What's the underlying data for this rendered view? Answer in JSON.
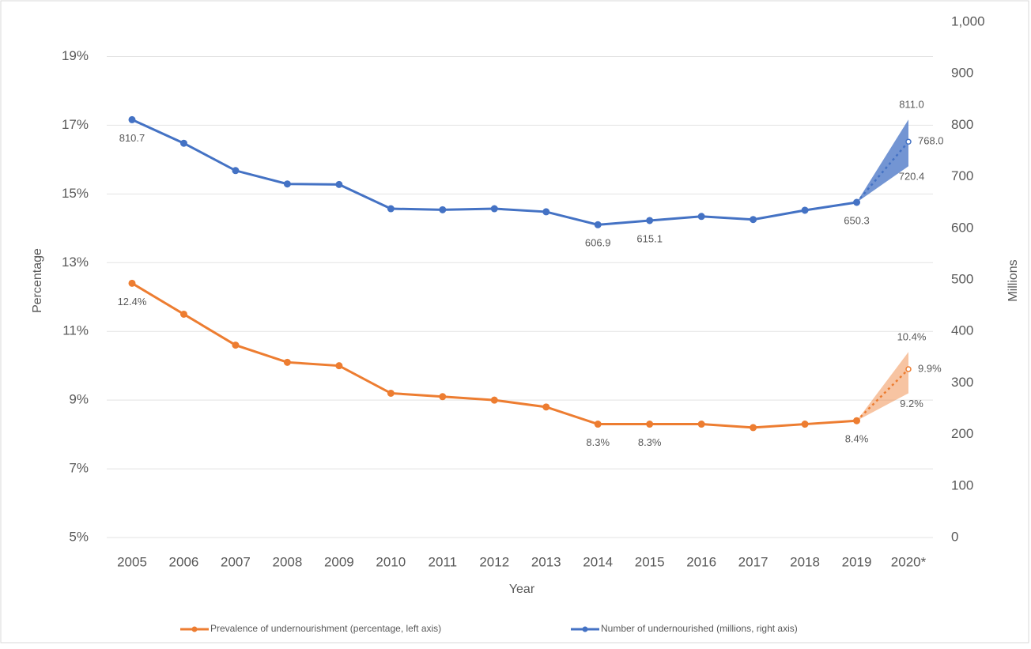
{
  "chart_data": {
    "type": "line",
    "x_label": "Year",
    "y_label": "Percentage",
    "y2_label": "Millions",
    "categories": [
      "2005",
      "2006",
      "2007",
      "2008",
      "2009",
      "2010",
      "2011",
      "2012",
      "2013",
      "2014",
      "2015",
      "2016",
      "2017",
      "2018",
      "2019",
      "2020*"
    ],
    "ylim": [
      5,
      20
    ],
    "yticks": [
      {
        "value": 5,
        "label": "5%"
      },
      {
        "value": 7,
        "label": "7%"
      },
      {
        "value": 9,
        "label": "9%"
      },
      {
        "value": 11,
        "label": "11%"
      },
      {
        "value": 13,
        "label": "13%"
      },
      {
        "value": 15,
        "label": "15%"
      },
      {
        "value": 17,
        "label": "17%"
      },
      {
        "value": 19,
        "label": "19%"
      }
    ],
    "y2lim": [
      0,
      1000
    ],
    "y2ticks": [
      0,
      100,
      200,
      300,
      400,
      500,
      600,
      700,
      800,
      900,
      {
        "value": 1000,
        "label": "1,000"
      }
    ],
    "grid": true,
    "legend": "bottom",
    "projection_dashed": true,
    "series": [
      {
        "name": "Prevalence of undernourishment (percentage, left axis)",
        "color": "#ed7d31",
        "axis": "y",
        "values": [
          12.4,
          11.5,
          10.6,
          10.1,
          10.0,
          9.2,
          9.1,
          9.0,
          8.8,
          8.3,
          8.3,
          8.3,
          8.2,
          8.3,
          8.4,
          9.9
        ],
        "value_labels": [
          "12.4%",
          null,
          null,
          null,
          null,
          null,
          null,
          null,
          null,
          "8.3%",
          "8.3%",
          null,
          null,
          null,
          "8.4%",
          "9.9%"
        ],
        "lower": [
          null,
          null,
          null,
          null,
          null,
          null,
          null,
          null,
          null,
          null,
          null,
          null,
          null,
          null,
          null,
          9.2
        ],
        "lower_labels": [
          null,
          null,
          null,
          null,
          null,
          null,
          null,
          null,
          null,
          null,
          null,
          null,
          null,
          null,
          null,
          "9.2%"
        ],
        "upper": [
          null,
          null,
          null,
          null,
          null,
          null,
          null,
          null,
          null,
          null,
          null,
          null,
          null,
          null,
          null,
          10.4
        ],
        "upper_labels": [
          null,
          null,
          null,
          null,
          null,
          null,
          null,
          null,
          null,
          null,
          null,
          null,
          null,
          null,
          null,
          "10.4%"
        ]
      },
      {
        "name": "Number of undernourished (millions, right axis)",
        "color": "#4472c4",
        "axis": "y2",
        "values": [
          810.7,
          765,
          712,
          686,
          685,
          638,
          636,
          638,
          632,
          606.9,
          615.1,
          623,
          617,
          635,
          650.3,
          768.0
        ],
        "value_labels": [
          "810.7",
          null,
          null,
          null,
          null,
          null,
          null,
          null,
          null,
          "606.9",
          "615.1",
          null,
          null,
          null,
          "650.3",
          "768.0"
        ],
        "lower": [
          null,
          null,
          null,
          null,
          null,
          null,
          null,
          null,
          null,
          null,
          null,
          null,
          null,
          null,
          null,
          720.4
        ],
        "lower_labels": [
          null,
          null,
          null,
          null,
          null,
          null,
          null,
          null,
          null,
          null,
          null,
          null,
          null,
          null,
          null,
          "720.4"
        ],
        "upper": [
          null,
          null,
          null,
          null,
          null,
          null,
          null,
          null,
          null,
          null,
          null,
          null,
          null,
          null,
          null,
          811.0
        ],
        "upper_labels": [
          null,
          null,
          null,
          null,
          null,
          null,
          null,
          null,
          null,
          null,
          null,
          null,
          null,
          null,
          null,
          "811.0"
        ]
      }
    ]
  }
}
